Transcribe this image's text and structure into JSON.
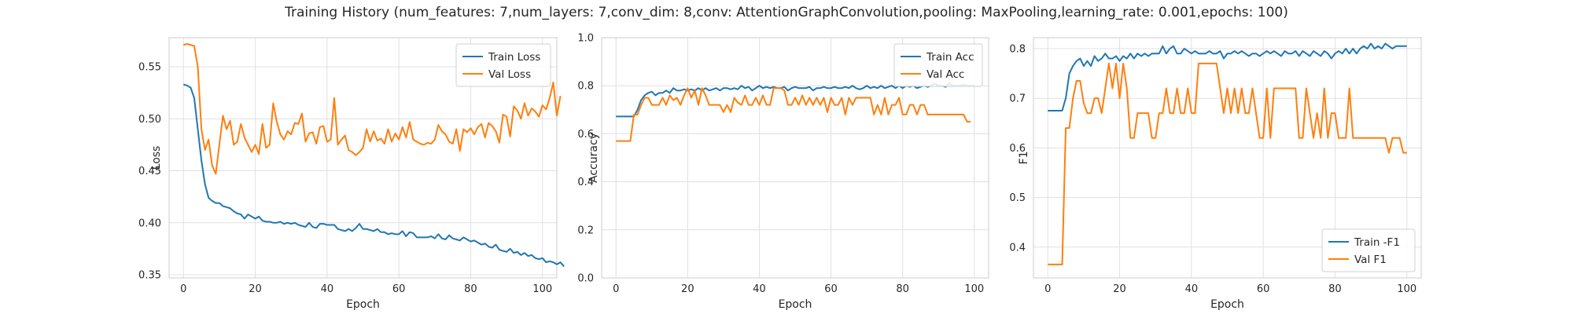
{
  "figure": {
    "title": "Training History (num_features: 7,num_layers: 7,conv_dim: 8,conv: AttentionGraphConvolution,pooling: MaxPooling,learning_rate: 0.001,epochs: 100)"
  },
  "colors": {
    "train": "#1f77b4",
    "val": "#ff7f0e",
    "grid": "#e0e0e0",
    "spine": "#cccccc"
  },
  "chart_data": [
    {
      "type": "line",
      "xlabel": "Epoch",
      "ylabel": "Loss",
      "xlim": [
        -4,
        104
      ],
      "ylim": [
        0.347,
        0.578
      ],
      "xticks": [
        0,
        20,
        40,
        60,
        80,
        100
      ],
      "yticks": [
        0.35,
        0.4,
        0.45,
        0.5,
        0.55
      ],
      "yticklabels": [
        "0.35",
        "0.40",
        "0.45",
        "0.50",
        "0.55"
      ],
      "grid": true,
      "legend": "upper right",
      "series": [
        {
          "name": "Train Loss",
          "color": "#1f77b4",
          "values": [
            0.533,
            0.532,
            0.53,
            0.52,
            0.49,
            0.46,
            0.437,
            0.424,
            0.421,
            0.419,
            0.419,
            0.416,
            0.415,
            0.414,
            0.411,
            0.409,
            0.408,
            0.404,
            0.408,
            0.406,
            0.404,
            0.406,
            0.402,
            0.401,
            0.401,
            0.4,
            0.4,
            0.401,
            0.399,
            0.4,
            0.399,
            0.4,
            0.398,
            0.397,
            0.396,
            0.4,
            0.396,
            0.395,
            0.399,
            0.399,
            0.398,
            0.398,
            0.398,
            0.394,
            0.393,
            0.392,
            0.394,
            0.392,
            0.395,
            0.399,
            0.394,
            0.394,
            0.393,
            0.392,
            0.394,
            0.391,
            0.391,
            0.389,
            0.39,
            0.389,
            0.389,
            0.392,
            0.387,
            0.391,
            0.39,
            0.386,
            0.386,
            0.386,
            0.386,
            0.387,
            0.385,
            0.389,
            0.385,
            0.384,
            0.388,
            0.385,
            0.384,
            0.383,
            0.386,
            0.384,
            0.382,
            0.383,
            0.381,
            0.379,
            0.38,
            0.377,
            0.376,
            0.379,
            0.374,
            0.373,
            0.372,
            0.375,
            0.371,
            0.372,
            0.369,
            0.371,
            0.368,
            0.369,
            0.366,
            0.365,
            0.366,
            0.362,
            0.363,
            0.362,
            0.36,
            0.362,
            0.358
          ]
        },
        {
          "name": "Val Loss",
          "color": "#ff7f0e",
          "values": [
            0.571,
            0.572,
            0.571,
            0.57,
            0.55,
            0.49,
            0.47,
            0.48,
            0.455,
            0.447,
            0.475,
            0.503,
            0.49,
            0.498,
            0.475,
            0.478,
            0.495,
            0.482,
            0.475,
            0.468,
            0.475,
            0.466,
            0.495,
            0.472,
            0.475,
            0.515,
            0.497,
            0.485,
            0.48,
            0.488,
            0.485,
            0.496,
            0.495,
            0.505,
            0.478,
            0.486,
            0.487,
            0.476,
            0.492,
            0.493,
            0.478,
            0.48,
            0.52,
            0.475,
            0.48,
            0.484,
            0.47,
            0.468,
            0.465,
            0.468,
            0.472,
            0.49,
            0.478,
            0.488,
            0.479,
            0.481,
            0.476,
            0.49,
            0.478,
            0.486,
            0.48,
            0.492,
            0.482,
            0.497,
            0.48,
            0.478,
            0.476,
            0.475,
            0.477,
            0.476,
            0.48,
            0.494,
            0.488,
            0.485,
            0.478,
            0.476,
            0.49,
            0.469,
            0.49,
            0.487,
            0.491,
            0.485,
            0.492,
            0.495,
            0.482,
            0.496,
            0.493,
            0.488,
            0.477,
            0.504,
            0.502,
            0.483,
            0.512,
            0.508,
            0.5,
            0.515,
            0.503,
            0.51,
            0.507,
            0.502,
            0.513,
            0.509,
            0.52,
            0.535,
            0.503,
            0.522
          ]
        }
      ]
    },
    {
      "type": "line",
      "xlabel": "Epoch",
      "ylabel": "Accuracy",
      "xlim": [
        -4,
        104
      ],
      "ylim": [
        0.0,
        1.0
      ],
      "xticks": [
        0,
        20,
        40,
        60,
        80,
        100
      ],
      "yticks": [
        0.0,
        0.2,
        0.4,
        0.6,
        0.8,
        1.0
      ],
      "yticklabels": [
        "0.0",
        "0.2",
        "0.4",
        "0.6",
        "0.8",
        "1.0"
      ],
      "grid": true,
      "legend": "upper right",
      "series": [
        {
          "name": "Train Acc",
          "color": "#1f77b4",
          "values": [
            0.672,
            0.672,
            0.672,
            0.672,
            0.672,
            0.672,
            0.7,
            0.74,
            0.76,
            0.77,
            0.775,
            0.76,
            0.77,
            0.77,
            0.78,
            0.77,
            0.79,
            0.78,
            0.78,
            0.785,
            0.78,
            0.785,
            0.78,
            0.79,
            0.78,
            0.79,
            0.78,
            0.785,
            0.79,
            0.78,
            0.79,
            0.79,
            0.785,
            0.79,
            0.785,
            0.8,
            0.79,
            0.795,
            0.78,
            0.79,
            0.8,
            0.79,
            0.795,
            0.79,
            0.795,
            0.79,
            0.79,
            0.795,
            0.78,
            0.79,
            0.795,
            0.79,
            0.79,
            0.79,
            0.795,
            0.78,
            0.79,
            0.79,
            0.795,
            0.79,
            0.79,
            0.795,
            0.79,
            0.79,
            0.795,
            0.79,
            0.8,
            0.79,
            0.785,
            0.79,
            0.8,
            0.79,
            0.795,
            0.79,
            0.8,
            0.79,
            0.795,
            0.8,
            0.79,
            0.8,
            0.79,
            0.8,
            0.795,
            0.8,
            0.79,
            0.795,
            0.8,
            0.795,
            0.8,
            0.81,
            0.8,
            0.8,
            0.795,
            0.81,
            0.8,
            0.8,
            0.8,
            0.805,
            0.8,
            0.8,
            0.8
          ]
        },
        {
          "name": "Val Acc",
          "color": "#ff7f0e",
          "values": [
            0.57,
            0.57,
            0.57,
            0.57,
            0.57,
            0.68,
            0.68,
            0.72,
            0.75,
            0.75,
            0.72,
            0.72,
            0.72,
            0.75,
            0.72,
            0.76,
            0.74,
            0.75,
            0.72,
            0.76,
            0.79,
            0.75,
            0.78,
            0.72,
            0.79,
            0.76,
            0.72,
            0.72,
            0.72,
            0.72,
            0.69,
            0.72,
            0.69,
            0.75,
            0.73,
            0.72,
            0.76,
            0.72,
            0.72,
            0.75,
            0.72,
            0.76,
            0.72,
            0.72,
            0.79,
            0.79,
            0.79,
            0.78,
            0.72,
            0.72,
            0.75,
            0.72,
            0.76,
            0.72,
            0.75,
            0.72,
            0.75,
            0.72,
            0.75,
            0.69,
            0.75,
            0.72,
            0.72,
            0.75,
            0.68,
            0.75,
            0.72,
            0.75,
            0.75,
            0.75,
            0.75,
            0.75,
            0.68,
            0.72,
            0.68,
            0.75,
            0.68,
            0.72,
            0.72,
            0.75,
            0.68,
            0.68,
            0.72,
            0.72,
            0.68,
            0.72,
            0.72,
            0.68,
            0.68,
            0.68,
            0.68,
            0.68,
            0.68,
            0.68,
            0.68,
            0.68,
            0.68,
            0.68,
            0.65,
            0.65
          ]
        }
      ]
    },
    {
      "type": "line",
      "xlabel": "Epoch",
      "ylabel": "F1",
      "xlim": [
        -4,
        104
      ],
      "ylim": [
        0.338,
        0.822
      ],
      "xticks": [
        0,
        20,
        40,
        60,
        80,
        100
      ],
      "yticks": [
        0.4,
        0.5,
        0.6,
        0.7,
        0.8
      ],
      "yticklabels": [
        "0.4",
        "0.5",
        "0.6",
        "0.7",
        "0.8"
      ],
      "grid": true,
      "legend": "lower right",
      "series": [
        {
          "name": "Train -F1",
          "color": "#1f77b4",
          "values": [
            0.675,
            0.675,
            0.675,
            0.675,
            0.675,
            0.7,
            0.75,
            0.765,
            0.775,
            0.78,
            0.765,
            0.775,
            0.765,
            0.785,
            0.775,
            0.78,
            0.79,
            0.78,
            0.78,
            0.785,
            0.775,
            0.785,
            0.78,
            0.79,
            0.78,
            0.79,
            0.785,
            0.79,
            0.785,
            0.79,
            0.79,
            0.79,
            0.805,
            0.79,
            0.8,
            0.805,
            0.79,
            0.79,
            0.8,
            0.795,
            0.79,
            0.795,
            0.79,
            0.79,
            0.79,
            0.795,
            0.79,
            0.79,
            0.795,
            0.78,
            0.79,
            0.79,
            0.795,
            0.79,
            0.795,
            0.79,
            0.785,
            0.79,
            0.79,
            0.785,
            0.79,
            0.795,
            0.79,
            0.795,
            0.79,
            0.785,
            0.795,
            0.79,
            0.79,
            0.795,
            0.785,
            0.795,
            0.79,
            0.785,
            0.795,
            0.79,
            0.785,
            0.795,
            0.79,
            0.78,
            0.79,
            0.795,
            0.79,
            0.8,
            0.79,
            0.8,
            0.79,
            0.8,
            0.805,
            0.8,
            0.81,
            0.8,
            0.805,
            0.8,
            0.81,
            0.805,
            0.8,
            0.805,
            0.805,
            0.805,
            0.805
          ]
        },
        {
          "name": "Val F1",
          "color": "#ff7f0e",
          "values": [
            0.365,
            0.365,
            0.365,
            0.365,
            0.365,
            0.64,
            0.64,
            0.7,
            0.735,
            0.735,
            0.69,
            0.67,
            0.67,
            0.7,
            0.7,
            0.67,
            0.72,
            0.77,
            0.72,
            0.77,
            0.7,
            0.77,
            0.72,
            0.62,
            0.62,
            0.67,
            0.67,
            0.67,
            0.67,
            0.62,
            0.62,
            0.67,
            0.67,
            0.72,
            0.67,
            0.67,
            0.72,
            0.67,
            0.67,
            0.72,
            0.67,
            0.67,
            0.77,
            0.77,
            0.77,
            0.77,
            0.77,
            0.77,
            0.72,
            0.67,
            0.72,
            0.67,
            0.72,
            0.67,
            0.72,
            0.67,
            0.67,
            0.72,
            0.67,
            0.62,
            0.62,
            0.72,
            0.62,
            0.72,
            0.72,
            0.72,
            0.72,
            0.72,
            0.72,
            0.72,
            0.62,
            0.62,
            0.72,
            0.67,
            0.62,
            0.67,
            0.62,
            0.72,
            0.62,
            0.67,
            0.67,
            0.62,
            0.62,
            0.62,
            0.72,
            0.62,
            0.62,
            0.62,
            0.62,
            0.62,
            0.62,
            0.62,
            0.62,
            0.62,
            0.62,
            0.59,
            0.62,
            0.62,
            0.62,
            0.59,
            0.59
          ]
        }
      ]
    }
  ]
}
